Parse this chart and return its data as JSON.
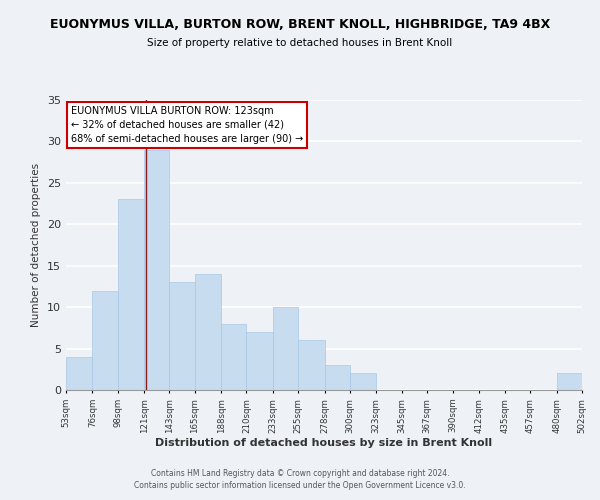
{
  "title_line1": "EUONYMUS VILLA, BURTON ROW, BRENT KNOLL, HIGHBRIDGE, TA9 4BX",
  "title_line2": "Size of property relative to detached houses in Brent Knoll",
  "xlabel": "Distribution of detached houses by size in Brent Knoll",
  "ylabel": "Number of detached properties",
  "bar_edges": [
    53,
    76,
    98,
    121,
    143,
    165,
    188,
    210,
    233,
    255,
    278,
    300,
    323,
    345,
    367,
    390,
    412,
    435,
    457,
    480,
    502
  ],
  "bar_heights": [
    4,
    12,
    23,
    29,
    13,
    14,
    8,
    7,
    10,
    6,
    3,
    2,
    0,
    0,
    0,
    0,
    0,
    0,
    0,
    2
  ],
  "bar_color": "#c8dcf0",
  "bar_edge_color": "#a8c8e8",
  "annotation_title": "EUONYMUS VILLA BURTON ROW: 123sqm",
  "annotation_line2": "← 32% of detached houses are smaller (42)",
  "annotation_line3": "68% of semi-detached houses are larger (90) →",
  "annotation_box_edge_color": "#cc0000",
  "annotation_box_face_color": "#ffffff",
  "property_value": 123,
  "ylim": [
    0,
    35
  ],
  "yticks": [
    0,
    5,
    10,
    15,
    20,
    25,
    30,
    35
  ],
  "footer_line1": "Contains HM Land Registry data © Crown copyright and database right 2024.",
  "footer_line2": "Contains public sector information licensed under the Open Government Licence v3.0.",
  "background_color": "#eef2f7"
}
